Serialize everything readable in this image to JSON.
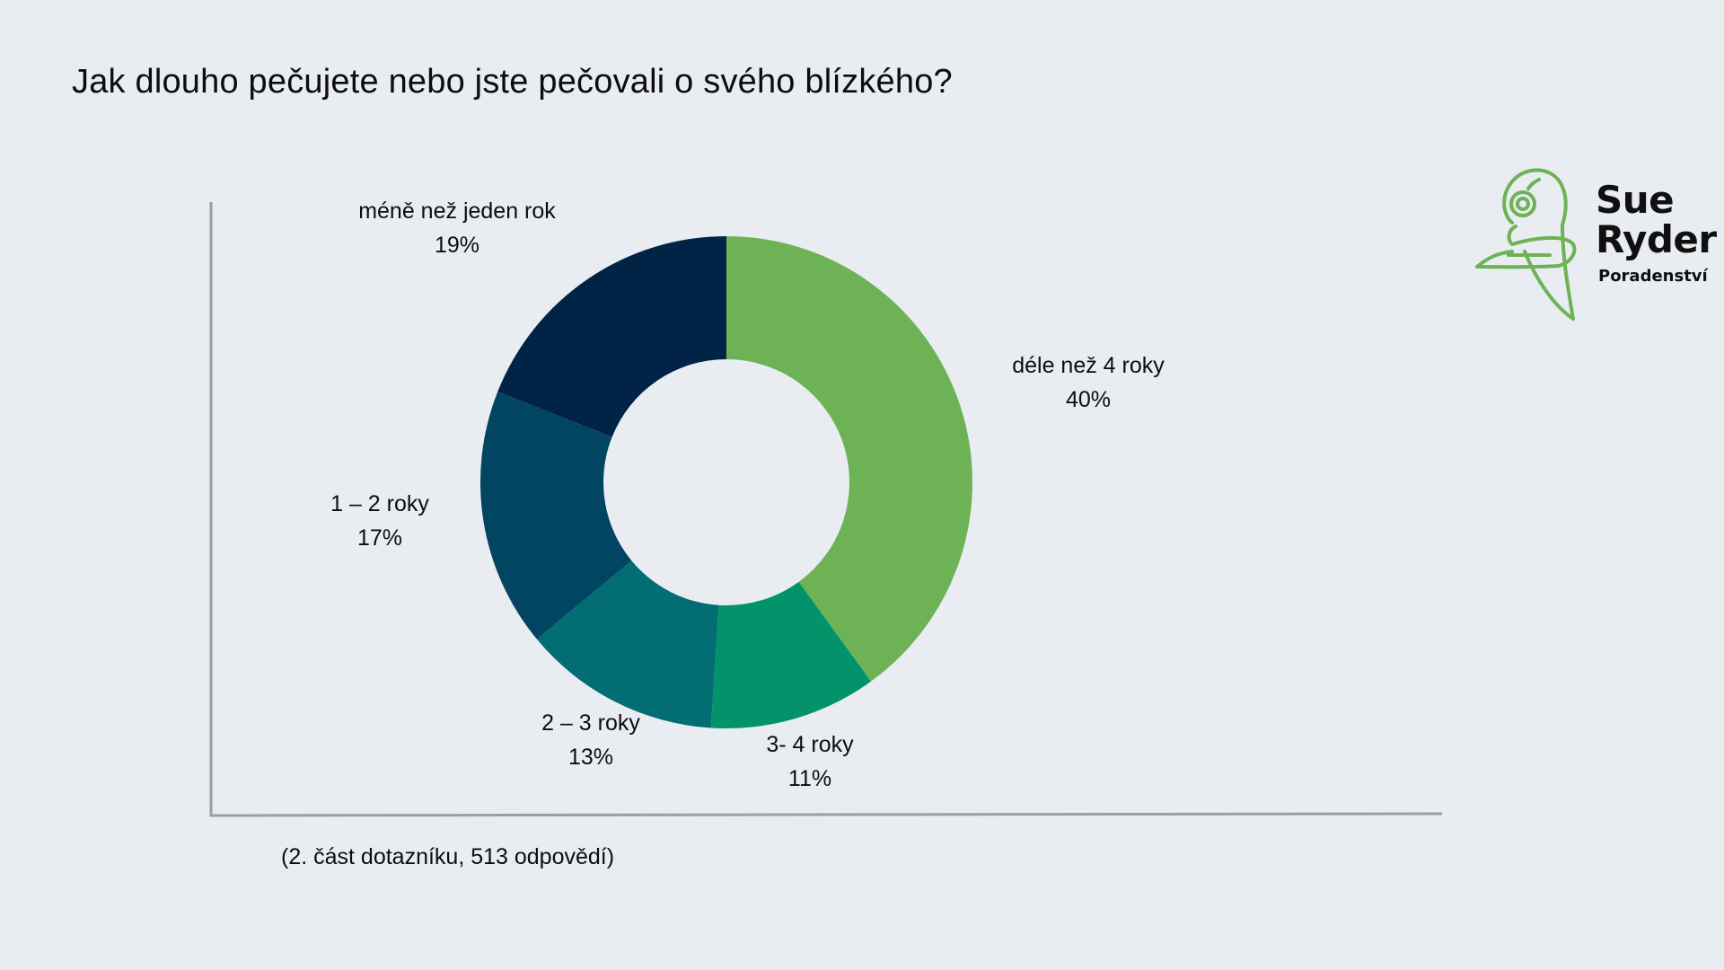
{
  "slide": {
    "title": "Jak dlouho pečujete nebo jste pečovali o svého blízkého?",
    "footnote": "(2. část dotazníku, 513 odpovědí)"
  },
  "logo": {
    "line1": "Sue",
    "line2": "Ryder",
    "sub": "Poradenství",
    "icon": "sue-ryder-mark-icon",
    "color": "#6db356"
  },
  "chart_data": {
    "type": "pie",
    "donut": true,
    "title": "",
    "start_angle_deg": 0,
    "direction": "clockwise",
    "slices": [
      {
        "label": "déle než 4 roky",
        "value": 40,
        "value_text": "40%",
        "color": "#6db356"
      },
      {
        "label": "3- 4 roky",
        "value": 11,
        "value_text": "11%",
        "color": "#02936a"
      },
      {
        "label": "2 – 3 roky",
        "value": 13,
        "value_text": "13%",
        "color": "#036d74"
      },
      {
        "label": "1 – 2 roky",
        "value": 17,
        "value_text": "17%",
        "color": "#024563"
      },
      {
        "label": "méně než jeden rok",
        "value": 19,
        "value_text": "19%",
        "color": "#012345"
      }
    ]
  }
}
